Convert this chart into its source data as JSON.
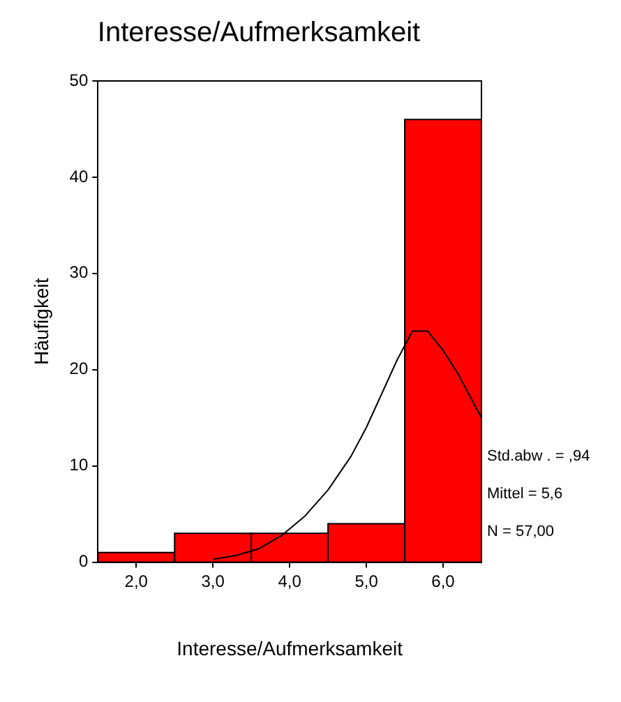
{
  "chart_data": {
    "type": "histogram",
    "title": "Interesse/Aufmerksamkeit",
    "xlabel": "Interesse/Aufmerksamkeit",
    "ylabel": "Häufigkeit",
    "bins": [
      1.5,
      2.5,
      3.5,
      4.5,
      5.5,
      6.5
    ],
    "values": [
      1,
      3,
      3,
      4,
      46
    ],
    "color": "#ff0000",
    "series": [
      {
        "type": "line",
        "color": "#000000",
        "x": [
          3.0,
          3.3,
          3.6,
          3.9,
          4.2,
          4.5,
          4.8,
          5.0,
          5.2,
          5.4,
          5.6,
          5.8,
          6.0,
          6.2,
          6.5
        ],
        "values": [
          0.3,
          0.7,
          1.4,
          2.8,
          4.8,
          7.5,
          11,
          14,
          17.5,
          21,
          24,
          24,
          22,
          19.5,
          15
        ]
      }
    ],
    "xlim": [
      1.5,
      6.5
    ],
    "xticks": [
      {
        "value": 2,
        "label": "2,0"
      },
      {
        "value": 3,
        "label": "3,0"
      },
      {
        "value": 4,
        "label": "4,0"
      },
      {
        "value": 5,
        "label": "5,0"
      },
      {
        "value": 6,
        "label": "6,0"
      }
    ],
    "ylim": [
      0,
      50
    ],
    "yticks": [
      0,
      10,
      20,
      30,
      40,
      50
    ],
    "grid": false,
    "legend": false,
    "annotations": [
      "Std.abw . = ,94",
      "Mittel = 5,6",
      "N = 57,00"
    ]
  }
}
